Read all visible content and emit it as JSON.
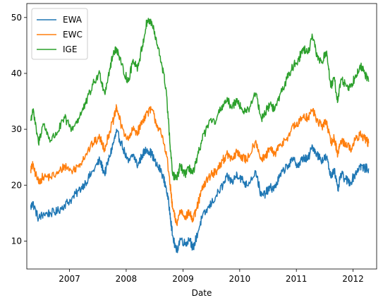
{
  "chart_data": {
    "type": "line",
    "title": "",
    "xlabel": "Date",
    "ylabel": "",
    "xlim": [
      "2006-04-01",
      "2012-06-01"
    ],
    "ylim": [
      5,
      52.5
    ],
    "x_ticks": [
      "2007",
      "2008",
      "2009",
      "2010",
      "2011",
      "2012"
    ],
    "y_ticks": [
      10,
      20,
      30,
      40,
      50
    ],
    "grid": false,
    "legend": "upper-left",
    "series": [
      {
        "name": "EWA",
        "color": "#1f77b4",
        "points": [
          [
            "2006-04-26",
            16.0
          ],
          [
            "2006-05-10",
            16.8
          ],
          [
            "2006-06-15",
            14.0
          ],
          [
            "2006-07-15",
            14.8
          ],
          [
            "2006-09-01",
            15.0
          ],
          [
            "2006-10-15",
            15.3
          ],
          [
            "2006-12-01",
            16.5
          ],
          [
            "2007-01-15",
            17.5
          ],
          [
            "2007-03-01",
            19.0
          ],
          [
            "2007-04-15",
            20.5
          ],
          [
            "2007-06-01",
            22.5
          ],
          [
            "2007-07-15",
            24.5
          ],
          [
            "2007-08-15",
            22.0
          ],
          [
            "2007-09-15",
            25.0
          ],
          [
            "2007-10-15",
            28.0
          ],
          [
            "2007-11-01",
            29.5
          ],
          [
            "2007-12-01",
            27.5
          ],
          [
            "2008-01-15",
            24.0
          ],
          [
            "2008-02-15",
            25.5
          ],
          [
            "2008-03-15",
            23.5
          ],
          [
            "2008-04-15",
            25.5
          ],
          [
            "2008-05-15",
            26.5
          ],
          [
            "2008-06-15",
            25.5
          ],
          [
            "2008-07-15",
            23.5
          ],
          [
            "2008-08-15",
            22.5
          ],
          [
            "2008-09-15",
            19.5
          ],
          [
            "2008-10-10",
            15.0
          ],
          [
            "2008-10-25",
            11.0
          ],
          [
            "2008-11-20",
            8.0
          ],
          [
            "2008-12-15",
            10.5
          ],
          [
            "2009-01-15",
            9.5
          ],
          [
            "2009-02-15",
            10.5
          ],
          [
            "2009-03-05",
            8.5
          ],
          [
            "2009-04-01",
            11.0
          ],
          [
            "2009-05-01",
            14.0
          ],
          [
            "2009-06-15",
            16.0
          ],
          [
            "2009-08-01",
            18.0
          ],
          [
            "2009-09-15",
            20.0
          ],
          [
            "2009-10-15",
            21.5
          ],
          [
            "2009-11-15",
            20.5
          ],
          [
            "2009-12-15",
            22.0
          ],
          [
            "2010-01-15",
            21.0
          ],
          [
            "2010-02-15",
            20.0
          ],
          [
            "2010-04-15",
            22.5
          ],
          [
            "2010-05-20",
            18.0
          ],
          [
            "2010-06-15",
            18.5
          ],
          [
            "2010-07-15",
            19.5
          ],
          [
            "2010-08-15",
            19.5
          ],
          [
            "2010-09-15",
            21.5
          ],
          [
            "2010-11-01",
            23.5
          ],
          [
            "2010-12-15",
            24.5
          ],
          [
            "2011-01-15",
            23.5
          ],
          [
            "2011-02-15",
            25.0
          ],
          [
            "2011-03-15",
            24.5
          ],
          [
            "2011-04-15",
            27.0
          ],
          [
            "2011-05-15",
            25.5
          ],
          [
            "2011-06-15",
            24.5
          ],
          [
            "2011-07-15",
            25.0
          ],
          [
            "2011-08-10",
            21.5
          ],
          [
            "2011-09-01",
            23.0
          ],
          [
            "2011-09-25",
            19.0
          ],
          [
            "2011-10-15",
            22.0
          ],
          [
            "2011-11-15",
            21.0
          ],
          [
            "2011-12-15",
            20.5
          ],
          [
            "2012-01-15",
            22.0
          ],
          [
            "2012-02-15",
            23.5
          ],
          [
            "2012-03-15",
            23.0
          ],
          [
            "2012-04-10",
            23.0
          ]
        ]
      },
      {
        "name": "EWC",
        "color": "#ff7f0e",
        "points": [
          [
            "2006-04-26",
            22.8
          ],
          [
            "2006-05-10",
            23.5
          ],
          [
            "2006-06-15",
            20.5
          ],
          [
            "2006-07-15",
            21.5
          ],
          [
            "2006-09-01",
            21.5
          ],
          [
            "2006-10-15",
            22.0
          ],
          [
            "2006-12-01",
            23.5
          ],
          [
            "2007-01-15",
            22.5
          ],
          [
            "2007-03-01",
            23.5
          ],
          [
            "2007-04-15",
            25.5
          ],
          [
            "2007-06-01",
            27.5
          ],
          [
            "2007-07-15",
            28.5
          ],
          [
            "2007-08-15",
            26.5
          ],
          [
            "2007-09-15",
            29.5
          ],
          [
            "2007-10-15",
            32.0
          ],
          [
            "2007-11-01",
            34.0
          ],
          [
            "2007-12-01",
            30.5
          ],
          [
            "2008-01-15",
            28.0
          ],
          [
            "2008-02-15",
            30.0
          ],
          [
            "2008-03-15",
            29.5
          ],
          [
            "2008-04-15",
            31.5
          ],
          [
            "2008-05-15",
            33.0
          ],
          [
            "2008-06-15",
            33.5
          ],
          [
            "2008-07-15",
            31.0
          ],
          [
            "2008-08-15",
            29.0
          ],
          [
            "2008-09-15",
            26.0
          ],
          [
            "2008-10-10",
            20.0
          ],
          [
            "2008-10-25",
            16.0
          ],
          [
            "2008-11-20",
            13.0
          ],
          [
            "2008-12-15",
            15.5
          ],
          [
            "2009-01-15",
            14.5
          ],
          [
            "2009-02-15",
            15.0
          ],
          [
            "2009-03-05",
            13.5
          ],
          [
            "2009-04-01",
            16.0
          ],
          [
            "2009-05-01",
            19.0
          ],
          [
            "2009-06-15",
            21.5
          ],
          [
            "2009-08-01",
            22.5
          ],
          [
            "2009-09-15",
            24.5
          ],
          [
            "2009-10-15",
            25.5
          ],
          [
            "2009-11-15",
            24.5
          ],
          [
            "2009-12-15",
            26.0
          ],
          [
            "2010-01-15",
            25.0
          ],
          [
            "2010-02-15",
            24.5
          ],
          [
            "2010-04-15",
            28.0
          ],
          [
            "2010-05-20",
            24.5
          ],
          [
            "2010-06-15",
            25.0
          ],
          [
            "2010-07-15",
            26.5
          ],
          [
            "2010-08-15",
            25.5
          ],
          [
            "2010-09-15",
            27.0
          ],
          [
            "2010-11-01",
            28.5
          ],
          [
            "2010-12-15",
            30.5
          ],
          [
            "2011-01-15",
            31.0
          ],
          [
            "2011-02-15",
            32.5
          ],
          [
            "2011-03-15",
            32.0
          ],
          [
            "2011-04-15",
            33.5
          ],
          [
            "2011-05-15",
            31.5
          ],
          [
            "2011-06-15",
            30.5
          ],
          [
            "2011-07-15",
            31.5
          ],
          [
            "2011-08-10",
            27.5
          ],
          [
            "2011-09-01",
            28.5
          ],
          [
            "2011-09-25",
            25.5
          ],
          [
            "2011-10-15",
            28.0
          ],
          [
            "2011-11-15",
            27.5
          ],
          [
            "2011-12-15",
            26.5
          ],
          [
            "2012-01-15",
            28.0
          ],
          [
            "2012-02-15",
            29.0
          ],
          [
            "2012-03-15",
            28.5
          ],
          [
            "2012-04-10",
            27.5
          ]
        ]
      },
      {
        "name": "IGE",
        "color": "#2ca02c",
        "points": [
          [
            "2006-04-26",
            31.5
          ],
          [
            "2006-05-10",
            33.5
          ],
          [
            "2006-06-15",
            27.5
          ],
          [
            "2006-07-15",
            31.0
          ],
          [
            "2006-09-01",
            28.0
          ],
          [
            "2006-10-15",
            29.5
          ],
          [
            "2006-12-01",
            32.0
          ],
          [
            "2007-01-15",
            30.0
          ],
          [
            "2007-03-01",
            32.0
          ],
          [
            "2007-04-15",
            34.5
          ],
          [
            "2007-06-01",
            38.0
          ],
          [
            "2007-07-15",
            40.0
          ],
          [
            "2007-08-15",
            36.5
          ],
          [
            "2007-09-15",
            40.5
          ],
          [
            "2007-10-15",
            44.0
          ],
          [
            "2007-11-01",
            44.5
          ],
          [
            "2007-12-01",
            41.5
          ],
          [
            "2008-01-15",
            38.5
          ],
          [
            "2008-02-15",
            42.5
          ],
          [
            "2008-03-15",
            41.0
          ],
          [
            "2008-04-15",
            45.0
          ],
          [
            "2008-05-15",
            49.5
          ],
          [
            "2008-06-15",
            49.0
          ],
          [
            "2008-07-15",
            45.5
          ],
          [
            "2008-08-15",
            42.0
          ],
          [
            "2008-09-15",
            37.0
          ],
          [
            "2008-10-10",
            27.0
          ],
          [
            "2008-10-25",
            22.0
          ],
          [
            "2008-11-20",
            21.0
          ],
          [
            "2008-12-15",
            23.5
          ],
          [
            "2009-01-15",
            22.0
          ],
          [
            "2009-02-15",
            23.0
          ],
          [
            "2009-03-05",
            22.0
          ],
          [
            "2009-04-01",
            24.5
          ],
          [
            "2009-05-01",
            28.0
          ],
          [
            "2009-06-15",
            31.0
          ],
          [
            "2009-08-01",
            31.5
          ],
          [
            "2009-09-15",
            34.5
          ],
          [
            "2009-10-15",
            35.0
          ],
          [
            "2009-11-15",
            34.0
          ],
          [
            "2009-12-15",
            35.5
          ],
          [
            "2010-01-15",
            33.5
          ],
          [
            "2010-02-15",
            33.0
          ],
          [
            "2010-04-15",
            36.5
          ],
          [
            "2010-05-20",
            32.0
          ],
          [
            "2010-06-15",
            33.0
          ],
          [
            "2010-07-15",
            34.5
          ],
          [
            "2010-08-15",
            33.5
          ],
          [
            "2010-09-15",
            36.0
          ],
          [
            "2010-11-01",
            39.0
          ],
          [
            "2010-12-15",
            41.5
          ],
          [
            "2011-01-15",
            42.5
          ],
          [
            "2011-02-15",
            44.5
          ],
          [
            "2011-03-15",
            43.5
          ],
          [
            "2011-04-15",
            46.5
          ],
          [
            "2011-05-15",
            43.0
          ],
          [
            "2011-06-15",
            42.0
          ],
          [
            "2011-07-15",
            44.0
          ],
          [
            "2011-08-10",
            37.5
          ],
          [
            "2011-09-01",
            39.0
          ],
          [
            "2011-09-25",
            35.0
          ],
          [
            "2011-10-15",
            39.0
          ],
          [
            "2011-11-15",
            38.0
          ],
          [
            "2011-12-15",
            37.5
          ],
          [
            "2012-01-15",
            39.5
          ],
          [
            "2012-02-15",
            41.5
          ],
          [
            "2012-03-15",
            40.0
          ],
          [
            "2012-04-10",
            38.5
          ]
        ]
      }
    ]
  }
}
